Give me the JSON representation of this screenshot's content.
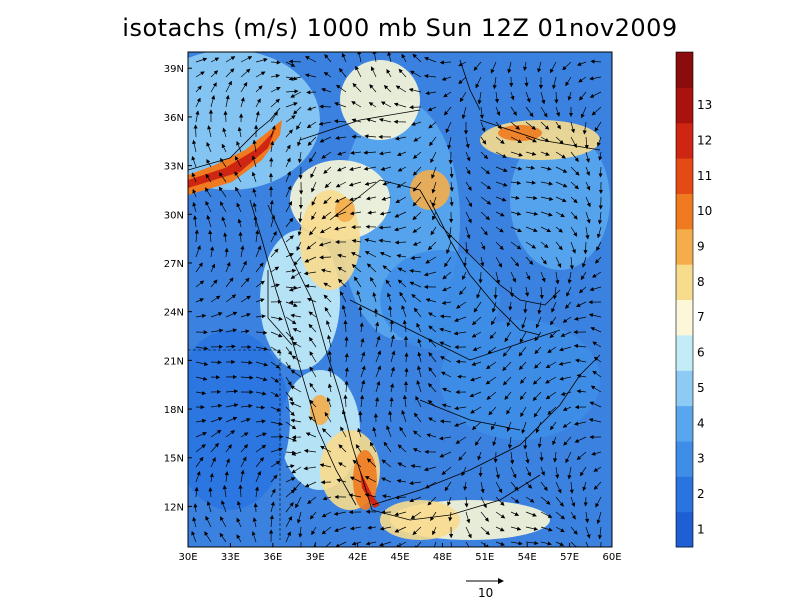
{
  "title": "isotachs (m/s) 1000 mb Sun 12Z 01nov2009",
  "map": {
    "lon_range": [
      30,
      60
    ],
    "lat_range": [
      9.5,
      40
    ],
    "lon_ticks": [
      "30E",
      "33E",
      "36E",
      "39E",
      "42E",
      "45E",
      "48E",
      "51E",
      "54E",
      "57E",
      "60E"
    ],
    "lat_ticks": [
      "39N",
      "36N",
      "33N",
      "30N",
      "27N",
      "24N",
      "21N",
      "18N",
      "15N",
      "12N"
    ],
    "lat_tick_values": [
      39,
      36,
      33,
      30,
      27,
      24,
      21,
      18,
      15,
      12
    ]
  },
  "colorbar": {
    "labels": [
      "1",
      "2",
      "3",
      "4",
      "5",
      "6",
      "7",
      "8",
      "9",
      "10",
      "11",
      "12",
      "13"
    ],
    "colors": [
      "#1f5fd4",
      "#2a74e0",
      "#3e8ee8",
      "#5aa6ee",
      "#8dcbf4",
      "#c4ecf8",
      "#fbf7d8",
      "#f8dc8e",
      "#f4ad4a",
      "#f07a1f",
      "#e44a14",
      "#cf2513",
      "#a9120f",
      "#8a0c0c"
    ]
  },
  "vector_reference": {
    "label": "10"
  }
}
